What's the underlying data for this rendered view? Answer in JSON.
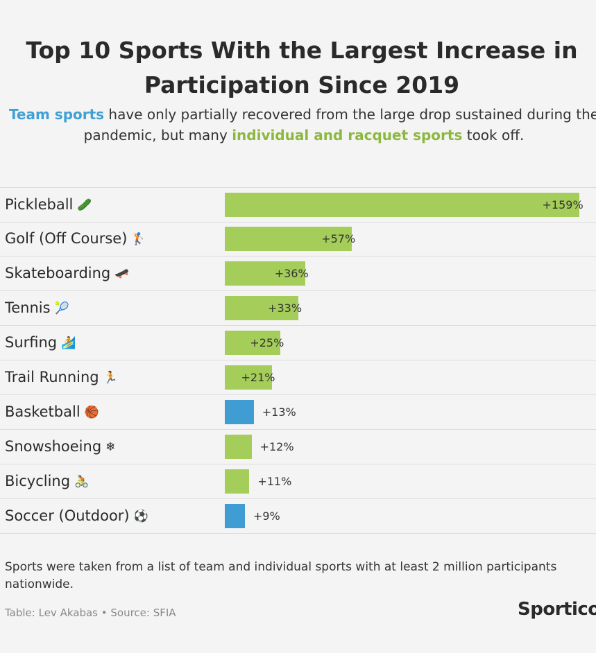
{
  "header": {
    "title_line1": "Top 10 Sports With the Largest Increase in",
    "title_line2": "Participation Since 2019",
    "subtitle_team": "Team sports",
    "subtitle_part1": " have only partially recovered from the large drop sustained during the pandemic, but many ",
    "subtitle_indiv": "individual and racquet sports",
    "subtitle_part2": " took off."
  },
  "colors": {
    "individual": "#a4cd5a",
    "team": "#3f9dd3",
    "team_text": "#41a0d4",
    "individual_text": "#8cb83f"
  },
  "chart_data": {
    "type": "bar",
    "orientation": "horizontal",
    "unit": "%",
    "categories": [
      "Pickleball",
      "Golf (Off Course)",
      "Skateboarding",
      "Tennis",
      "Surfing",
      "Trail Running",
      "Basketball",
      "Snowshoeing",
      "Bicycling",
      "Soccer (Outdoor)"
    ],
    "values": [
      159,
      57,
      36,
      33,
      25,
      21,
      13,
      12,
      11,
      9
    ],
    "labels": [
      "+159%",
      "+57%",
      "+36%",
      "+33%",
      "+25%",
      "+21%",
      "+13%",
      "+12%",
      "+11%",
      "+9%"
    ],
    "group": [
      "individual",
      "individual",
      "individual",
      "individual",
      "individual",
      "individual",
      "team",
      "individual",
      "individual",
      "team"
    ],
    "icons": [
      "cucumber-icon",
      "golfer-icon",
      "skateboard-icon",
      "tennis-icon",
      "surfer-icon",
      "runner-icon",
      "basketball-icon",
      "snowflake-icon",
      "cyclist-icon",
      "soccer-ball-icon"
    ],
    "icon_glyphs": [
      "🥒",
      "🏌",
      "🛹",
      "🎾",
      "🏄",
      "🏃",
      "🏀",
      "❄",
      "🚴",
      "⚽"
    ],
    "xlim": [
      0,
      159
    ]
  },
  "footer": {
    "note": "Sports were taken from a list of team and individual sports with at least 2 million participants nationwide.",
    "source": "Table: Lev Akabas • Source: SFIA",
    "brand": "Sportico"
  }
}
